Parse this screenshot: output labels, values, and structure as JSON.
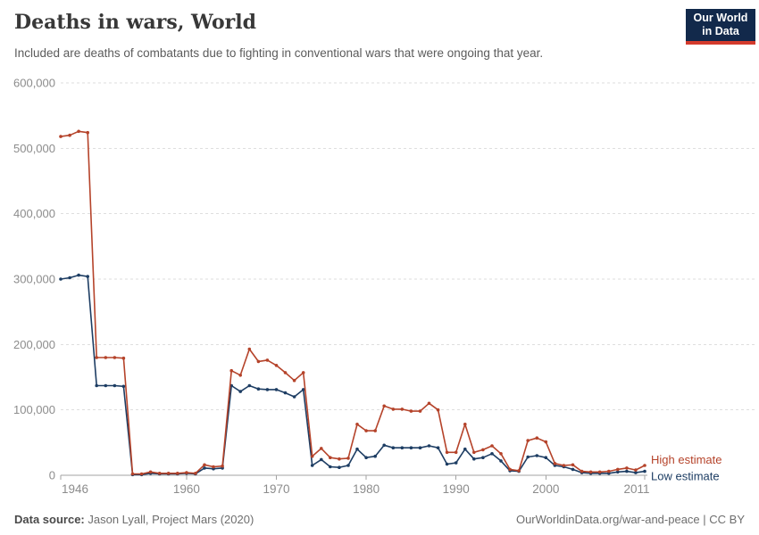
{
  "header": {
    "title": "Deaths in wars, World",
    "subtitle": "Included are deaths of combatants due to fighting in conventional wars that were ongoing that year."
  },
  "logo": {
    "line1": "Our World",
    "line2": "in Data",
    "bg_color": "#12294B",
    "bar_color": "#D33A2C"
  },
  "footer": {
    "source_label": "Data source:",
    "source_value": " Jason Lyall, Project Mars (2020)",
    "right": "OurWorldinData.org/war-and-peace | CC BY"
  },
  "chart_data": {
    "type": "line",
    "title": "Deaths in wars, World",
    "subtitle": "Included are deaths of combatants due to fighting in conventional wars that were ongoing that year.",
    "xlabel": "",
    "ylabel": "",
    "xlim": [
      1946,
      2011
    ],
    "ylim": [
      0,
      600000
    ],
    "xticks": [
      1946,
      1960,
      1970,
      1980,
      1990,
      2000,
      2011
    ],
    "yticks": [
      0,
      100000,
      200000,
      300000,
      400000,
      500000,
      600000
    ],
    "grid": "dashed-horizontal",
    "legend_position": "right-end",
    "x": [
      1946,
      1947,
      1948,
      1949,
      1950,
      1951,
      1952,
      1953,
      1954,
      1955,
      1956,
      1957,
      1958,
      1959,
      1960,
      1961,
      1962,
      1963,
      1964,
      1965,
      1966,
      1967,
      1968,
      1969,
      1970,
      1971,
      1972,
      1973,
      1974,
      1975,
      1976,
      1977,
      1978,
      1979,
      1980,
      1981,
      1982,
      1983,
      1984,
      1985,
      1986,
      1987,
      1988,
      1989,
      1990,
      1991,
      1992,
      1993,
      1994,
      1995,
      1996,
      1997,
      1998,
      1999,
      2000,
      2001,
      2002,
      2003,
      2004,
      2005,
      2006,
      2007,
      2008,
      2009,
      2010,
      2011
    ],
    "series": [
      {
        "name": "Low estimate",
        "color": "#1D3D63",
        "values": [
          300000,
          302000,
          306000,
          304000,
          137000,
          137000,
          137000,
          136000,
          1000,
          1000,
          3000,
          2000,
          2000,
          2000,
          3000,
          2000,
          11000,
          10000,
          11000,
          137000,
          128000,
          137000,
          132000,
          131000,
          131000,
          126000,
          120000,
          131000,
          15000,
          24000,
          13000,
          12000,
          15000,
          40000,
          27000,
          29000,
          46000,
          42000,
          42000,
          42000,
          42000,
          45000,
          42000,
          17000,
          19000,
          40000,
          25000,
          27000,
          33000,
          22000,
          7000,
          6000,
          28000,
          30000,
          27000,
          15000,
          13000,
          9000,
          4000,
          3000,
          3000,
          3000,
          5000,
          6000,
          4000,
          6000
        ]
      },
      {
        "name": "High estimate",
        "color": "#B5432A",
        "values": [
          518000,
          520000,
          526000,
          524000,
          180000,
          180000,
          180000,
          179000,
          2000,
          2000,
          5000,
          3000,
          3000,
          3000,
          4000,
          3000,
          16000,
          13000,
          14000,
          160000,
          153000,
          193000,
          174000,
          176000,
          168000,
          157000,
          145000,
          157000,
          29000,
          41000,
          27000,
          25000,
          26000,
          78000,
          68000,
          68000,
          106000,
          101000,
          101000,
          98000,
          98000,
          110000,
          100000,
          35000,
          35000,
          78000,
          35000,
          39000,
          45000,
          33000,
          9000,
          7000,
          53000,
          57000,
          51000,
          18000,
          15000,
          16000,
          6000,
          5000,
          5000,
          6000,
          9000,
          11000,
          8000,
          15000
        ]
      }
    ]
  }
}
